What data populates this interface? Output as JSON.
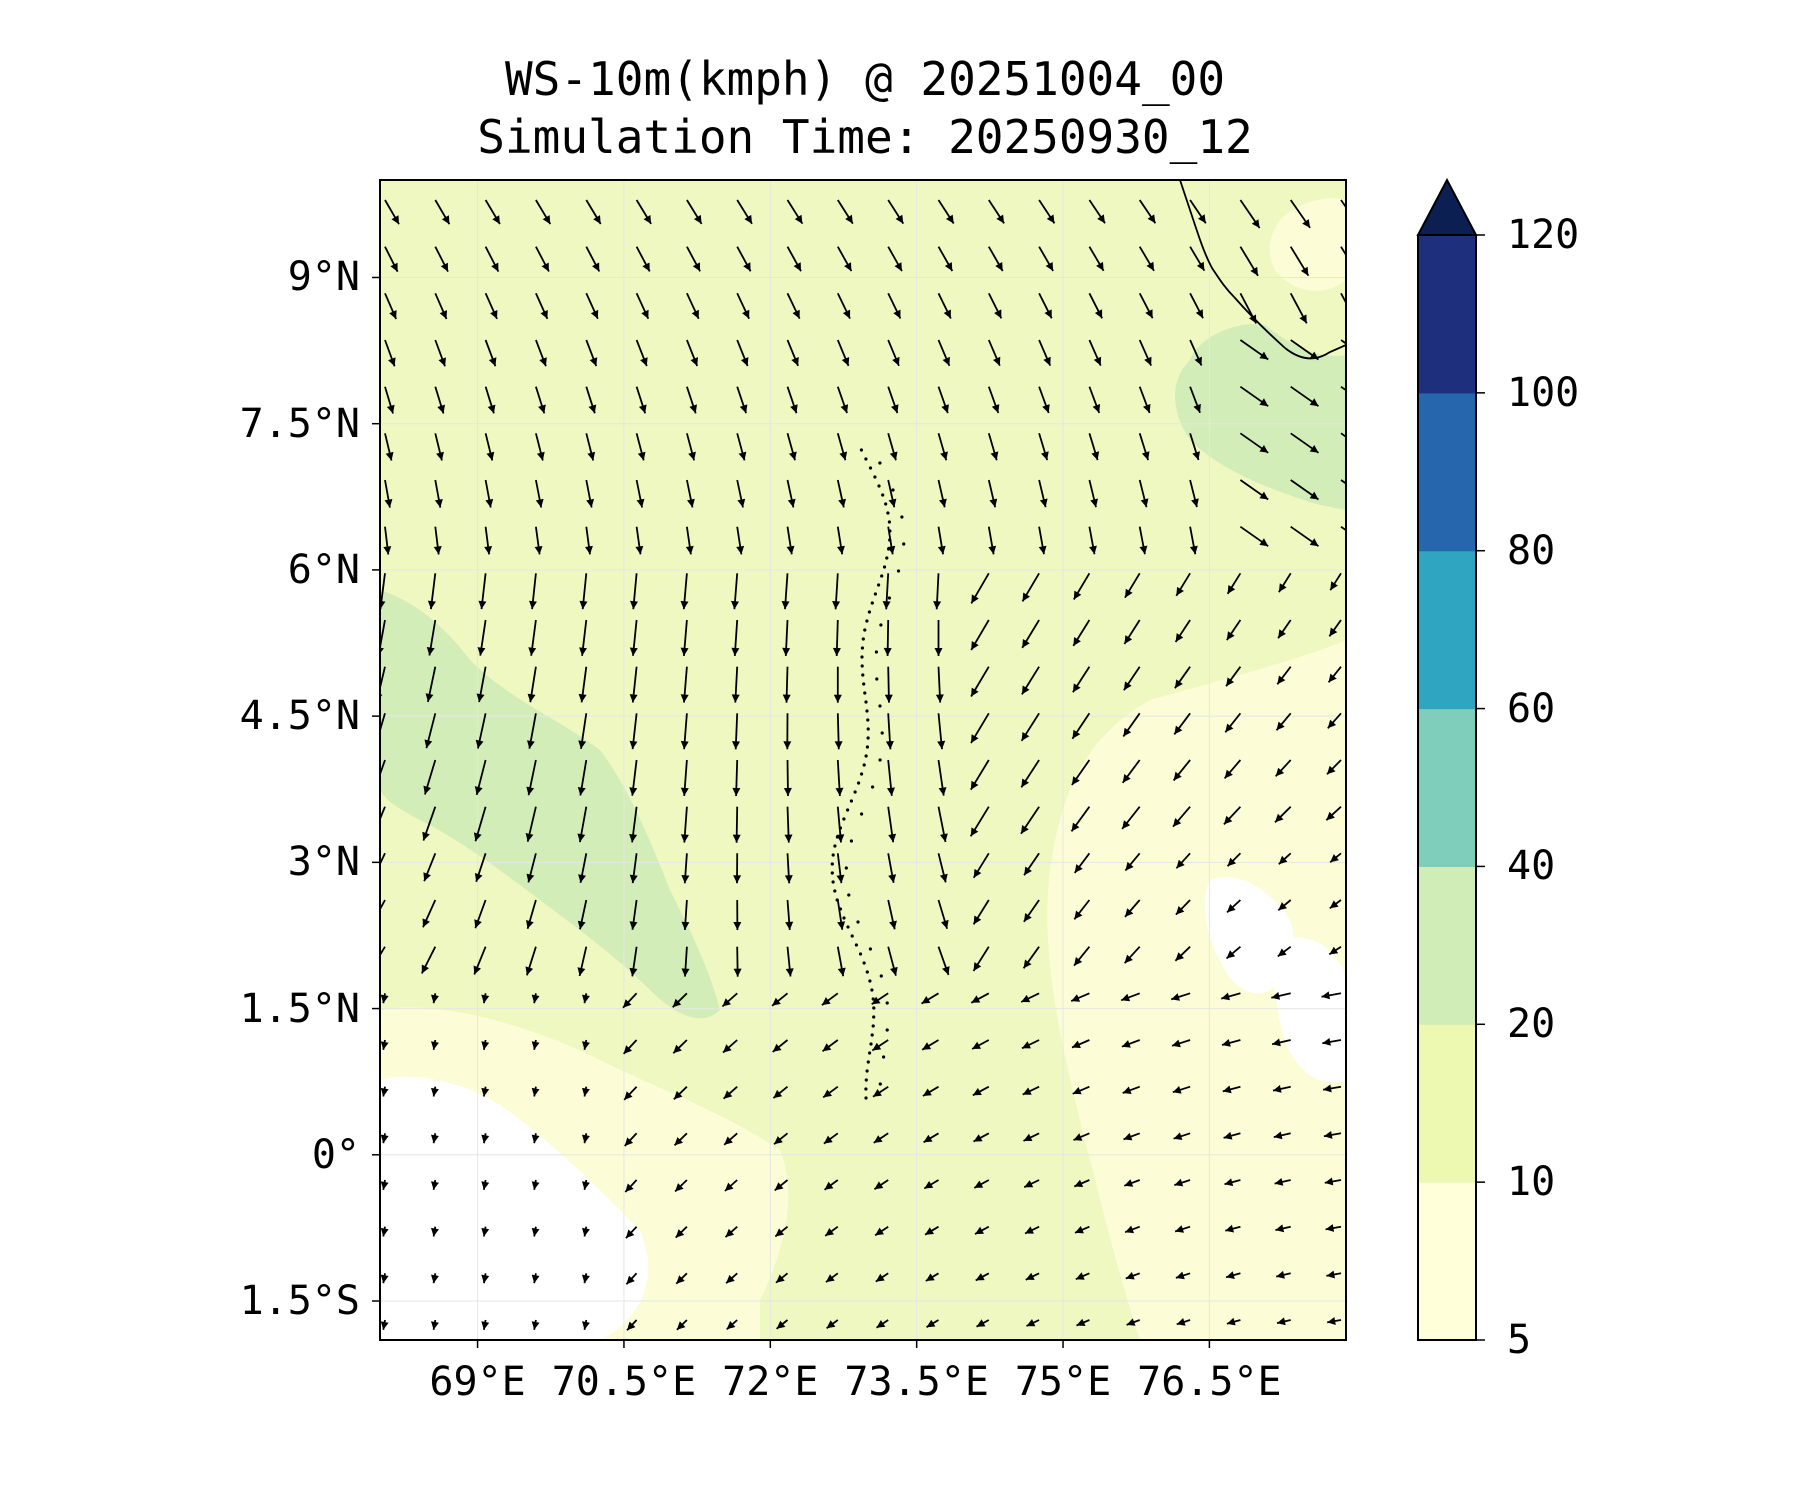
{
  "title": {
    "line1": "WS-10m(kmph) @ 20251004_00",
    "line2": "Simulation Time: 20250930_12"
  },
  "map": {
    "lat_labels": [
      "9°N",
      "7.5°N",
      "6°N",
      "4.5°N",
      "3°N",
      "1.5°N",
      "0°",
      "1.5°S"
    ],
    "lon_labels": [
      "69°E",
      "70.5°E",
      "72°E",
      "73.5°E",
      "75°E",
      "76.5°E"
    ],
    "extent": {
      "lon_min": 68.0,
      "lon_max": 77.9,
      "lat_min": -1.9,
      "lat_max": 10.0
    },
    "colors": {
      "frame": "#000000",
      "gridline": "#e6e6e6",
      "arrow": "#000000"
    }
  },
  "colorbar": {
    "levels": [
      5,
      10,
      20,
      40,
      60,
      80,
      100,
      120
    ],
    "labels": [
      "5",
      "10",
      "20",
      "40",
      "60",
      "80",
      "100",
      "120"
    ],
    "colors": [
      "#ffffd9",
      "#edf8b1",
      "#d0edb8",
      "#7fcdbb",
      "#30a5c2",
      "#2566ac",
      "#1e2f7e"
    ],
    "extend_color": "#0c1f52",
    "extend": "max"
  }
}
